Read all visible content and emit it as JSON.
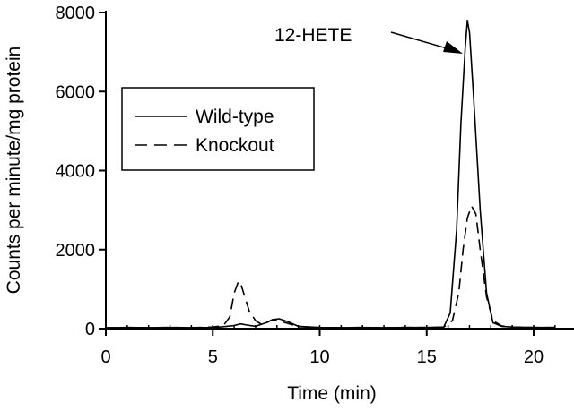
{
  "chart_data": {
    "type": "line",
    "title": "",
    "xlabel": "Time (min)",
    "ylabel": "Counts per minute/mg protein",
    "xlim": [
      0,
      21
    ],
    "ylim": [
      0,
      8000
    ],
    "x_ticks": [
      0,
      5,
      10,
      15,
      20
    ],
    "x_tick_labels": [
      "0",
      "5",
      "10",
      "15",
      "20"
    ],
    "y_ticks": [
      0,
      2000,
      4000,
      6000,
      8000
    ],
    "y_tick_labels": [
      "0",
      "2000",
      "4000",
      "6000",
      "8000"
    ],
    "grid": false,
    "legend_position": "upper-left",
    "series": [
      {
        "name": "Wild-type",
        "style": "solid",
        "x": [
          0,
          1,
          2,
          3,
          4,
          5,
          5.5,
          6,
          6.3,
          6.6,
          7,
          7.5,
          7.8,
          8.1,
          8.5,
          9,
          10,
          11,
          12,
          13,
          14,
          15,
          15.8,
          16.1,
          16.4,
          16.6,
          16.8,
          16.9,
          17.0,
          17.2,
          17.5,
          17.8,
          18.1,
          18.5,
          19,
          20,
          21
        ],
        "y": [
          20,
          30,
          25,
          30,
          25,
          30,
          50,
          80,
          120,
          90,
          60,
          150,
          230,
          250,
          180,
          60,
          30,
          25,
          30,
          25,
          30,
          30,
          40,
          400,
          2500,
          5200,
          7100,
          7800,
          7500,
          5800,
          3000,
          900,
          150,
          60,
          40,
          30,
          30
        ]
      },
      {
        "name": "Knockout",
        "style": "dashed",
        "x": [
          0,
          1,
          2,
          3,
          4,
          5,
          5.5,
          5.8,
          6.0,
          6.2,
          6.3,
          6.5,
          6.7,
          7.0,
          7.3,
          7.7,
          8.0,
          8.4,
          9,
          10,
          11,
          12,
          13,
          14,
          15,
          15.8,
          16.2,
          16.5,
          16.7,
          16.9,
          17.1,
          17.3,
          17.5,
          17.8,
          18.1,
          18.5,
          19,
          20,
          21
        ],
        "y": [
          20,
          30,
          25,
          30,
          25,
          40,
          80,
          300,
          900,
          1200,
          1150,
          800,
          450,
          200,
          100,
          200,
          220,
          150,
          50,
          30,
          25,
          30,
          25,
          30,
          30,
          40,
          200,
          900,
          2000,
          2800,
          3100,
          2900,
          2000,
          800,
          200,
          70,
          40,
          30,
          30
        ]
      }
    ],
    "annotations": [
      {
        "text": "12-HETE",
        "x": 16.7,
        "y": 7300
      }
    ]
  }
}
